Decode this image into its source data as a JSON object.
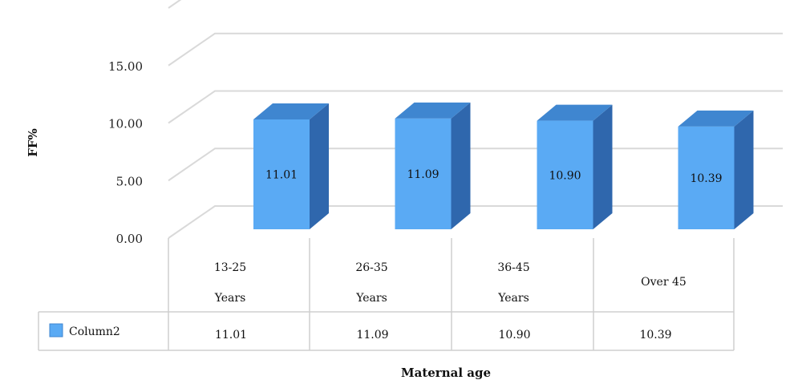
{
  "chart_data": {
    "type": "bar",
    "categories": [
      [
        "13-25",
        "Years"
      ],
      [
        "26-35",
        "Years"
      ],
      [
        "36-45",
        "Years"
      ],
      [
        "Over 45"
      ]
    ],
    "series": [
      {
        "name": "Column2",
        "values": [
          11.01,
          11.09,
          10.9,
          10.39
        ],
        "color": "#5aaaf4"
      }
    ],
    "data_labels": [
      "11.01",
      "11.09",
      "10.90",
      "10.39"
    ],
    "yticks": [
      "0.00",
      "5.00",
      "10.00",
      "15.00"
    ],
    "ylim": [
      0,
      20
    ],
    "xlabel": "Maternal age",
    "ylabel": "FF%",
    "style": "3d-column",
    "data_table": true,
    "grid": true,
    "colors": {
      "bar_front": "#5aaaf4",
      "bar_top": "#3f86d0",
      "bar_side": "#2f67ad",
      "grid": "#d9d9d9"
    }
  }
}
